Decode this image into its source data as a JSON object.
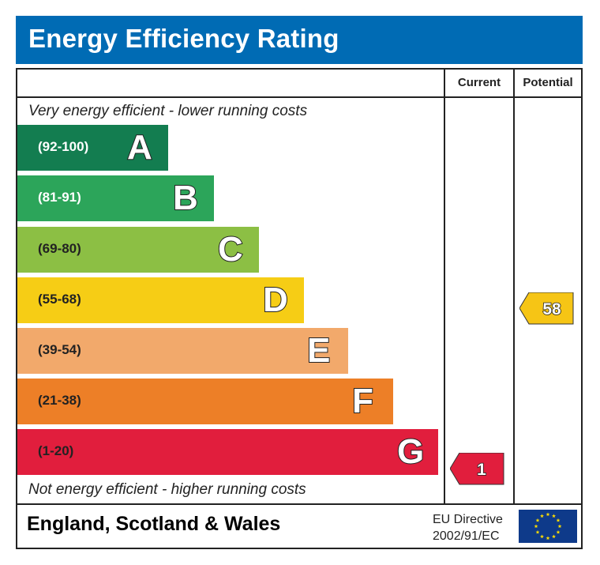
{
  "header": {
    "title": "Energy Efficiency Rating"
  },
  "columns": {
    "current": "Current",
    "potential": "Potential"
  },
  "captions": {
    "top": "Very energy efficient - lower running costs",
    "bottom": "Not energy efficient - higher running costs"
  },
  "chart_data": {
    "type": "bar",
    "title": "Energy Efficiency Rating",
    "categories": [
      "A",
      "B",
      "C",
      "D",
      "E",
      "F",
      "G"
    ],
    "ranges": [
      "(92-100)",
      "(81-91)",
      "(69-80)",
      "(55-68)",
      "(39-54)",
      "(21-38)",
      "(1-20)"
    ],
    "colors": [
      "#137d50",
      "#2ca55a",
      "#8cbf44",
      "#f6cd15",
      "#f2a96b",
      "#ed7f27",
      "#e11e3d"
    ],
    "range_text_colors": [
      "#ffffff",
      "#ffffff",
      "#222222",
      "#222222",
      "#222222",
      "#222222",
      "#222222"
    ],
    "current": {
      "value": 1,
      "band": "G",
      "color": "#e11e3d"
    },
    "potential": {
      "value": 58,
      "band": "D",
      "color": "#f6c515"
    }
  },
  "ratings": {
    "current_label": "1",
    "potential_label": "58"
  },
  "footer": {
    "country": "England, Scotland & Wales",
    "directive_line1": "EU Directive",
    "directive_line2": "2002/91/EC",
    "eu_flag_icon": "eu-flag-icon",
    "flag_color": "#0e3a8a",
    "star_color": "#ffdd00"
  }
}
